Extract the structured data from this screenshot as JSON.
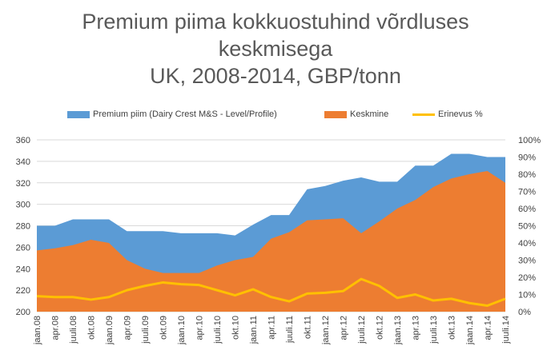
{
  "title_lines": [
    "Premium piima kokkuostuhind võrdluses",
    "keskmisega",
    "UK, 2008-2014, GBP/tonn"
  ],
  "legend": {
    "premium": "Premium piim (Dairy Crest M&S - Level/Profile)",
    "average": "Keskmine",
    "diff": "Erinevus %"
  },
  "colors": {
    "premium": "#5b9bd5",
    "average": "#ed7d31",
    "diff": "#ffc000",
    "grid": "#d9d9d9"
  },
  "chart_data": {
    "type": "area",
    "title": "Premium piima kokkuostuhind võrdluses keskmisega UK, 2008-2014, GBP/tonn",
    "x_tick_labels": [
      "jaan.08",
      "apr.08",
      "juuli.08",
      "okt.08",
      "jaan.09",
      "apr.09",
      "juuli.09",
      "okt.09",
      "jaan.10",
      "apr.10",
      "juuli.10",
      "okt.10",
      "jaan.11",
      "apr.11",
      "juuli.11",
      "okt.11",
      "jaan.12",
      "apr.12",
      "juuli.12",
      "okt.12",
      "jaan.13",
      "apr.13",
      "juuli.13",
      "okt.13",
      "jaan.14",
      "apr.14",
      "juuli.14"
    ],
    "y_left": {
      "range": [
        200,
        360
      ],
      "ticks": [
        200,
        220,
        240,
        260,
        280,
        300,
        320,
        340,
        360
      ]
    },
    "y_right": {
      "range": [
        0,
        100
      ],
      "ticks": [
        "0%",
        "10%",
        "20%",
        "30%",
        "40%",
        "50%",
        "60%",
        "70%",
        "80%",
        "90%",
        "100%"
      ]
    },
    "grid": true,
    "legend_position": "top",
    "series": [
      {
        "name": "Premium piim (Dairy Crest M&S - Level/Profile)",
        "type": "area",
        "axis": "left",
        "values": [
          280,
          280,
          286,
          286,
          286,
          275,
          275,
          275,
          273,
          273,
          273,
          271,
          281,
          290,
          290,
          314,
          317,
          322,
          325,
          321,
          321,
          336,
          336,
          347,
          347,
          344,
          344
        ]
      },
      {
        "name": "Keskmine",
        "type": "area",
        "axis": "left",
        "values": [
          257,
          259,
          262,
          267,
          264,
          248,
          240,
          236,
          236,
          236,
          243,
          248,
          251,
          268,
          274,
          285,
          286,
          287,
          273,
          284,
          296,
          304,
          316,
          324,
          328,
          331,
          320
        ]
      },
      {
        "name": "Erinevus %",
        "type": "line",
        "axis": "right",
        "values": [
          9,
          8.5,
          8.5,
          7,
          8.5,
          12.5,
          15,
          17,
          16,
          15.5,
          12.5,
          9.5,
          13,
          8.5,
          6,
          10.5,
          11,
          12,
          19,
          15,
          8,
          10,
          6.5,
          7.5,
          5,
          3.5,
          7.5
        ]
      }
    ]
  }
}
